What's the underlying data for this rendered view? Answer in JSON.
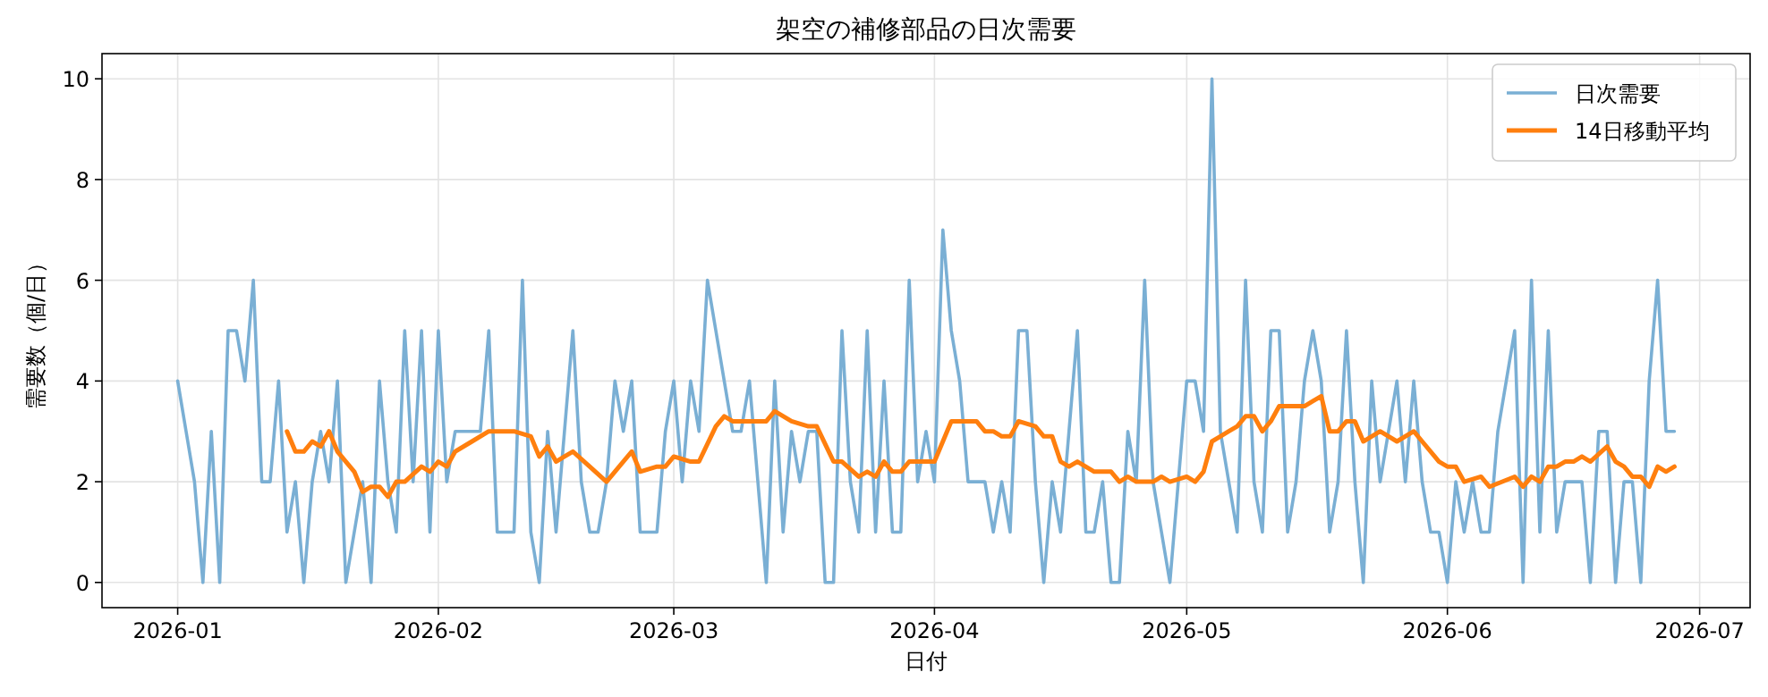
{
  "chart_data": {
    "type": "line",
    "title": "架空の補修部品の日次需要",
    "xlabel": "日付",
    "ylabel": "需要数（個/日）",
    "xlim": [
      "2025-12-23",
      "2026-07-07"
    ],
    "xticks": [
      {
        "value": "2026-01-01",
        "label": "2026-01"
      },
      {
        "value": "2026-02-01",
        "label": "2026-02"
      },
      {
        "value": "2026-03-01",
        "label": "2026-03"
      },
      {
        "value": "2026-04-01",
        "label": "2026-04"
      },
      {
        "value": "2026-05-01",
        "label": "2026-05"
      },
      {
        "value": "2026-06-01",
        "label": "2026-06"
      },
      {
        "value": "2026-07-01",
        "label": "2026-07"
      }
    ],
    "ylim": [
      -0.5,
      10.5
    ],
    "yticks": [
      0,
      2,
      4,
      6,
      8,
      10
    ],
    "grid": true,
    "legend": "top right",
    "series": [
      {
        "name": "日次需要",
        "color": "#7aafd4",
        "x": [
          "2026-01-01",
          "2026-01-02",
          "2026-01-03",
          "2026-01-04",
          "2026-01-05",
          "2026-01-06",
          "2026-01-07",
          "2026-01-08",
          "2026-01-09",
          "2026-01-10",
          "2026-01-11",
          "2026-01-12",
          "2026-01-13",
          "2026-01-14",
          "2026-01-15",
          "2026-01-16",
          "2026-01-17",
          "2026-01-18",
          "2026-01-19",
          "2026-01-20",
          "2026-01-21",
          "2026-01-22",
          "2026-01-23",
          "2026-01-24",
          "2026-01-25",
          "2026-01-26",
          "2026-01-27",
          "2026-01-28",
          "2026-01-29",
          "2026-01-30",
          "2026-01-31",
          "2026-02-01",
          "2026-02-02",
          "2026-02-03",
          "2026-02-04",
          "2026-02-05",
          "2026-02-06",
          "2026-02-07",
          "2026-02-08",
          "2026-02-09",
          "2026-02-10",
          "2026-02-11",
          "2026-02-12",
          "2026-02-13",
          "2026-02-14",
          "2026-02-15",
          "2026-02-16",
          "2026-02-17",
          "2026-02-18",
          "2026-02-19",
          "2026-02-20",
          "2026-02-21",
          "2026-02-22",
          "2026-02-23",
          "2026-02-24",
          "2026-02-25",
          "2026-02-26",
          "2026-02-27",
          "2026-02-28",
          "2026-03-01",
          "2026-03-02",
          "2026-03-03",
          "2026-03-04",
          "2026-03-05",
          "2026-03-06",
          "2026-03-07",
          "2026-03-08",
          "2026-03-09",
          "2026-03-10",
          "2026-03-11",
          "2026-03-12",
          "2026-03-13",
          "2026-03-14",
          "2026-03-15",
          "2026-03-16",
          "2026-03-17",
          "2026-03-18",
          "2026-03-19",
          "2026-03-20",
          "2026-03-21",
          "2026-03-22",
          "2026-03-23",
          "2026-03-24",
          "2026-03-25",
          "2026-03-26",
          "2026-03-27",
          "2026-03-28",
          "2026-03-29",
          "2026-03-30",
          "2026-03-31",
          "2026-04-01",
          "2026-04-02",
          "2026-04-03",
          "2026-04-04",
          "2026-04-05",
          "2026-04-06",
          "2026-04-07",
          "2026-04-08",
          "2026-04-09",
          "2026-04-10",
          "2026-04-11",
          "2026-04-12",
          "2026-04-13",
          "2026-04-14",
          "2026-04-15",
          "2026-04-16",
          "2026-04-17",
          "2026-04-18",
          "2026-04-19",
          "2026-04-20",
          "2026-04-21",
          "2026-04-22",
          "2026-04-23",
          "2026-04-24",
          "2026-04-25",
          "2026-04-26",
          "2026-04-27",
          "2026-04-28",
          "2026-04-29",
          "2026-04-30",
          "2026-05-01",
          "2026-05-02",
          "2026-05-03",
          "2026-05-04",
          "2026-05-05",
          "2026-05-06",
          "2026-05-07",
          "2026-05-08",
          "2026-05-09",
          "2026-05-10",
          "2026-05-11",
          "2026-05-12",
          "2026-05-13",
          "2026-05-14",
          "2026-05-15",
          "2026-05-16",
          "2026-05-17",
          "2026-05-18",
          "2026-05-19",
          "2026-05-20",
          "2026-05-21",
          "2026-05-22",
          "2026-05-23",
          "2026-05-24",
          "2026-05-25",
          "2026-05-26",
          "2026-05-27",
          "2026-05-28",
          "2026-05-29",
          "2026-05-30",
          "2026-05-31",
          "2026-06-01",
          "2026-06-02",
          "2026-06-03",
          "2026-06-04",
          "2026-06-05",
          "2026-06-06",
          "2026-06-07",
          "2026-06-08",
          "2026-06-09",
          "2026-06-10",
          "2026-06-11",
          "2026-06-12",
          "2026-06-13",
          "2026-06-14",
          "2026-06-15",
          "2026-06-16",
          "2026-06-17",
          "2026-06-18",
          "2026-06-19",
          "2026-06-20",
          "2026-06-21",
          "2026-06-22",
          "2026-06-23",
          "2026-06-24",
          "2026-06-25",
          "2026-06-26",
          "2026-06-27",
          "2026-06-28"
        ],
        "values": [
          4,
          3,
          2,
          0,
          3,
          0,
          5,
          5,
          4,
          6,
          2,
          2,
          4,
          1,
          2,
          0,
          2,
          3,
          2,
          4,
          0,
          1,
          2,
          0,
          4,
          2,
          1,
          5,
          2,
          5,
          1,
          5,
          2,
          3,
          3,
          3,
          3,
          5,
          1,
          1,
          1,
          6,
          1,
          0,
          3,
          1,
          3,
          5,
          2,
          1,
          1,
          2,
          4,
          3,
          4,
          1,
          1,
          1,
          3,
          4,
          2,
          4,
          3,
          6,
          5,
          4,
          3,
          3,
          4,
          2,
          0,
          4,
          1,
          3,
          2,
          3,
          3,
          0,
          0,
          5,
          2,
          1,
          5,
          1,
          4,
          1,
          1,
          6,
          2,
          3,
          2,
          7,
          5,
          4,
          2,
          2,
          2,
          1,
          2,
          1,
          5,
          5,
          2,
          0,
          2,
          1,
          3,
          5,
          1,
          1,
          2,
          0,
          0,
          3,
          2,
          6,
          2,
          1,
          0,
          2,
          4,
          4,
          3,
          10,
          3,
          2,
          1,
          6,
          2,
          1,
          5,
          5,
          1,
          2,
          4,
          5,
          4,
          1,
          2,
          5,
          2,
          0,
          4,
          2,
          3,
          4,
          2,
          4,
          2,
          1,
          1,
          0,
          2,
          1,
          2,
          1,
          1,
          3,
          4,
          5,
          0,
          6,
          1,
          5,
          1,
          2,
          2,
          2,
          0,
          3,
          3,
          0,
          2,
          2,
          0,
          4,
          6,
          3,
          3
        ]
      },
      {
        "name": "14日移動平均",
        "color": "#ff7f0e",
        "x": [
          "2026-01-14",
          "2026-01-15",
          "2026-01-16",
          "2026-01-17",
          "2026-01-18",
          "2026-01-19",
          "2026-01-20",
          "2026-01-21",
          "2026-01-22",
          "2026-01-23",
          "2026-01-24",
          "2026-01-25",
          "2026-01-26",
          "2026-01-27",
          "2026-01-28",
          "2026-01-30",
          "2026-01-31",
          "2026-02-01",
          "2026-02-02",
          "2026-02-03",
          "2026-02-05",
          "2026-02-07",
          "2026-02-08",
          "2026-02-10",
          "2026-02-12",
          "2026-02-13",
          "2026-02-14",
          "2026-02-15",
          "2026-02-16",
          "2026-02-17",
          "2026-02-19",
          "2026-02-21",
          "2026-02-24",
          "2026-02-25",
          "2026-02-27",
          "2026-02-28",
          "2026-03-01",
          "2026-03-03",
          "2026-03-04",
          "2026-03-06",
          "2026-03-07",
          "2026-03-08",
          "2026-03-10",
          "2026-03-12",
          "2026-03-13",
          "2026-03-15",
          "2026-03-17",
          "2026-03-18",
          "2026-03-20",
          "2026-03-21",
          "2026-03-23",
          "2026-03-24",
          "2026-03-25",
          "2026-03-26",
          "2026-03-27",
          "2026-03-28",
          "2026-03-29",
          "2026-03-31",
          "2026-04-01",
          "2026-04-03",
          "2026-04-04",
          "2026-04-06",
          "2026-04-07",
          "2026-04-08",
          "2026-04-09",
          "2026-04-10",
          "2026-04-11",
          "2026-04-13",
          "2026-04-14",
          "2026-04-15",
          "2026-04-16",
          "2026-04-17",
          "2026-04-18",
          "2026-04-20",
          "2026-04-21",
          "2026-04-22",
          "2026-04-23",
          "2026-04-24",
          "2026-04-25",
          "2026-04-27",
          "2026-04-28",
          "2026-04-29",
          "2026-05-01",
          "2026-05-02",
          "2026-05-03",
          "2026-05-04",
          "2026-05-05",
          "2026-05-06",
          "2026-05-07",
          "2026-05-08",
          "2026-05-09",
          "2026-05-10",
          "2026-05-11",
          "2026-05-12",
          "2026-05-13",
          "2026-05-15",
          "2026-05-16",
          "2026-05-17",
          "2026-05-18",
          "2026-05-19",
          "2026-05-20",
          "2026-05-21",
          "2026-05-22",
          "2026-05-24",
          "2026-05-26",
          "2026-05-28",
          "2026-05-29",
          "2026-05-31",
          "2026-06-01",
          "2026-06-02",
          "2026-06-03",
          "2026-06-05",
          "2026-06-06",
          "2026-06-09",
          "2026-06-10",
          "2026-06-11",
          "2026-06-12",
          "2026-06-13",
          "2026-06-14",
          "2026-06-15",
          "2026-06-16",
          "2026-06-17",
          "2026-06-18",
          "2026-06-20",
          "2026-06-21",
          "2026-06-22",
          "2026-06-23",
          "2026-06-24",
          "2026-06-25",
          "2026-06-26",
          "2026-06-27",
          "2026-06-28"
        ],
        "values": [
          3.0,
          2.6,
          2.6,
          2.8,
          2.7,
          3.0,
          2.6,
          2.4,
          2.2,
          1.8,
          1.9,
          1.9,
          1.7,
          2.0,
          2.0,
          2.3,
          2.2,
          2.4,
          2.3,
          2.6,
          2.8,
          3.0,
          3.0,
          3.0,
          2.9,
          2.5,
          2.7,
          2.4,
          2.5,
          2.6,
          2.3,
          2.0,
          2.6,
          2.2,
          2.3,
          2.3,
          2.5,
          2.4,
          2.4,
          3.1,
          3.3,
          3.2,
          3.2,
          3.2,
          3.4,
          3.2,
          3.1,
          3.1,
          2.4,
          2.4,
          2.1,
          2.2,
          2.1,
          2.4,
          2.2,
          2.2,
          2.4,
          2.4,
          2.4,
          3.2,
          3.2,
          3.2,
          3.0,
          3.0,
          2.9,
          2.9,
          3.2,
          3.1,
          2.9,
          2.9,
          2.4,
          2.3,
          2.4,
          2.2,
          2.2,
          2.2,
          2.0,
          2.1,
          2.0,
          2.0,
          2.1,
          2.0,
          2.1,
          2.0,
          2.2,
          2.8,
          2.9,
          3.0,
          3.1,
          3.3,
          3.3,
          3.0,
          3.2,
          3.5,
          3.5,
          3.5,
          3.6,
          3.7,
          3.0,
          3.0,
          3.2,
          3.2,
          2.8,
          3.0,
          2.8,
          3.0,
          2.8,
          2.4,
          2.3,
          2.3,
          2.0,
          2.1,
          1.9,
          2.1,
          1.9,
          2.1,
          2.0,
          2.3,
          2.3,
          2.4,
          2.4,
          2.5,
          2.4,
          2.7,
          2.4,
          2.3,
          2.1,
          2.1,
          1.9,
          2.3,
          2.2,
          2.3
        ]
      }
    ]
  }
}
